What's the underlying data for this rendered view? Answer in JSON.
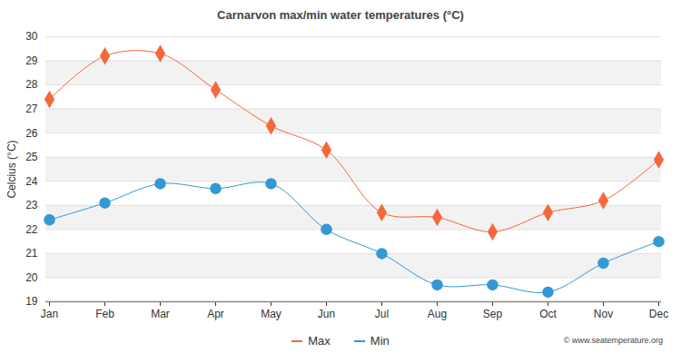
{
  "chart_data": {
    "type": "line",
    "title": "Carnarvon max/min water temperatures (°C)",
    "y_label": "Celcius (°C)",
    "annotations": [
      "© www.seatemperature.org"
    ],
    "categories": [
      "Jan",
      "Feb",
      "Mar",
      "Apr",
      "May",
      "Jun",
      "Jul",
      "Aug",
      "Sep",
      "Oct",
      "Nov",
      "Dec"
    ],
    "series": [
      {
        "name": "Max",
        "color": "#f4683c",
        "marker": "diamond",
        "values": [
          27.4,
          29.2,
          29.3,
          27.8,
          26.3,
          25.3,
          22.7,
          22.5,
          21.9,
          22.7,
          23.2,
          24.9
        ]
      },
      {
        "name": "Min",
        "color": "#3399d4",
        "marker": "circle",
        "values": [
          22.4,
          23.1,
          23.9,
          23.7,
          23.9,
          22.0,
          21.0,
          19.7,
          19.7,
          19.4,
          20.6,
          21.5
        ]
      }
    ],
    "ylim": [
      19,
      30
    ],
    "yticks": [
      19,
      20,
      21,
      22,
      23,
      24,
      25,
      26,
      27,
      28,
      29,
      30
    ],
    "grid": true,
    "legend": "bottom"
  }
}
